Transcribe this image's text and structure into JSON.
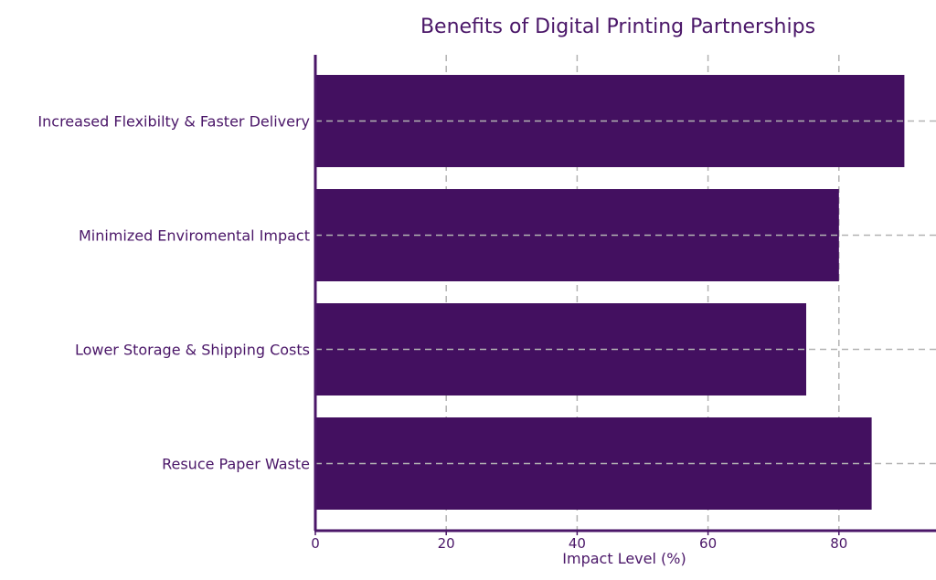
{
  "chart_data": {
    "type": "bar",
    "orientation": "horizontal",
    "title": "Benefits of Digital Printing Partnerships",
    "xlabel": "Impact Level (%)",
    "ylabel": "",
    "categories": [
      "Increased Flexibilty & Faster Delivery",
      "Minimized Enviromental Impact",
      "Lower Storage & Shipping Costs",
      "Resuce Paper Waste"
    ],
    "values": [
      90,
      80,
      75,
      85
    ],
    "xlim": [
      0,
      95
    ],
    "xticks": [
      "0",
      "20",
      "40",
      "60",
      "80"
    ],
    "grid": true,
    "bar_color": "#431060",
    "text_color": "#4a1668",
    "axis_color": "#4a1668",
    "grid_color": "#b3b3b3"
  }
}
